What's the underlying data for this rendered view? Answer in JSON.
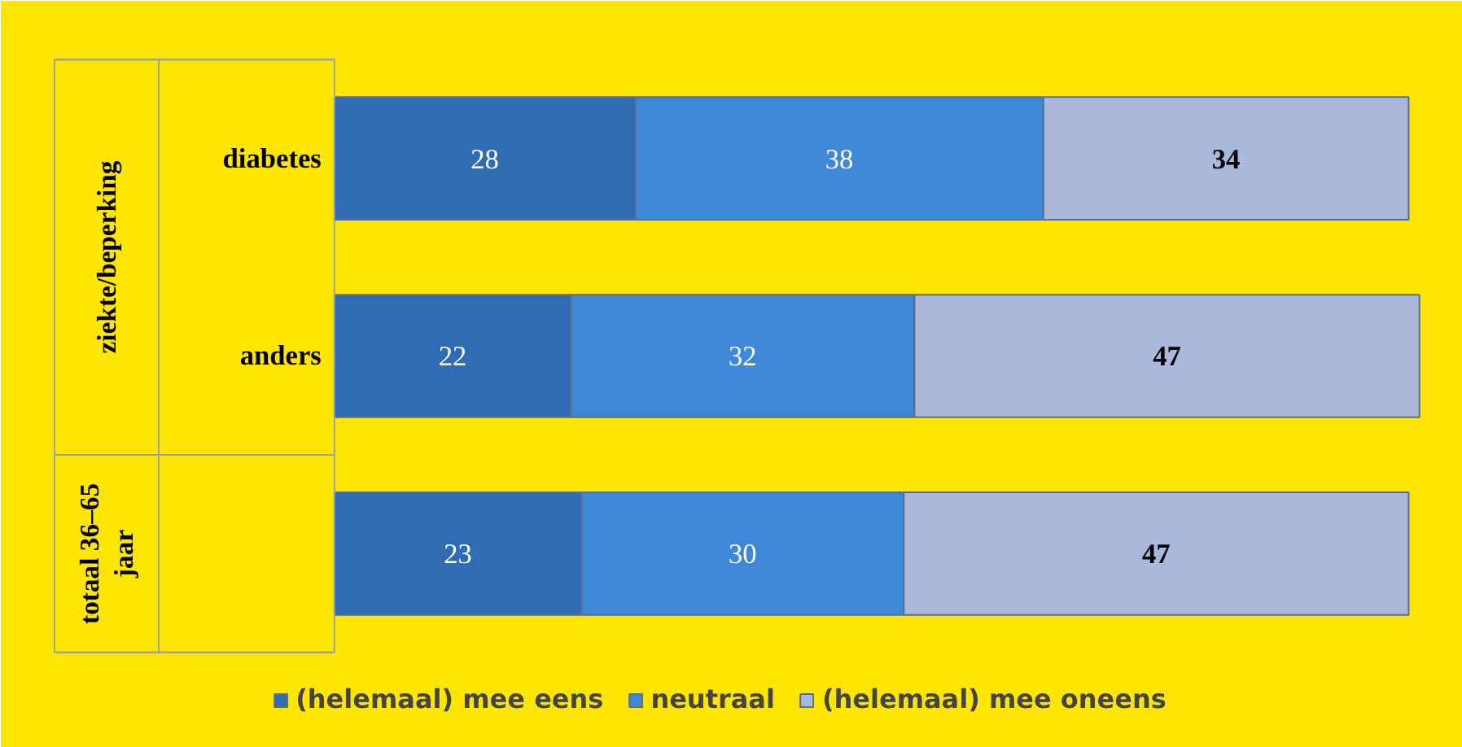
{
  "chart_data": {
    "type": "bar",
    "orientation": "horizontal",
    "stacked": true,
    "data_labels": true,
    "legend": "bottom",
    "grid": false,
    "categories": [
      "diabetes",
      "anders",
      null
    ],
    "annotations": [
      "ziekte/beperking",
      "totaal 36–65 jaar"
    ],
    "series": [
      {
        "name": "(helemaal) mee eens",
        "color": "#2f6cb3",
        "values": [
          28,
          22,
          23
        ]
      },
      {
        "name": "neutraal",
        "color": "#3f87d8",
        "values": [
          38,
          32,
          30
        ]
      },
      {
        "name": "(helemaal) mee oneens",
        "color": "#aab8dc",
        "values": [
          34,
          47,
          47
        ]
      }
    ]
  }
}
